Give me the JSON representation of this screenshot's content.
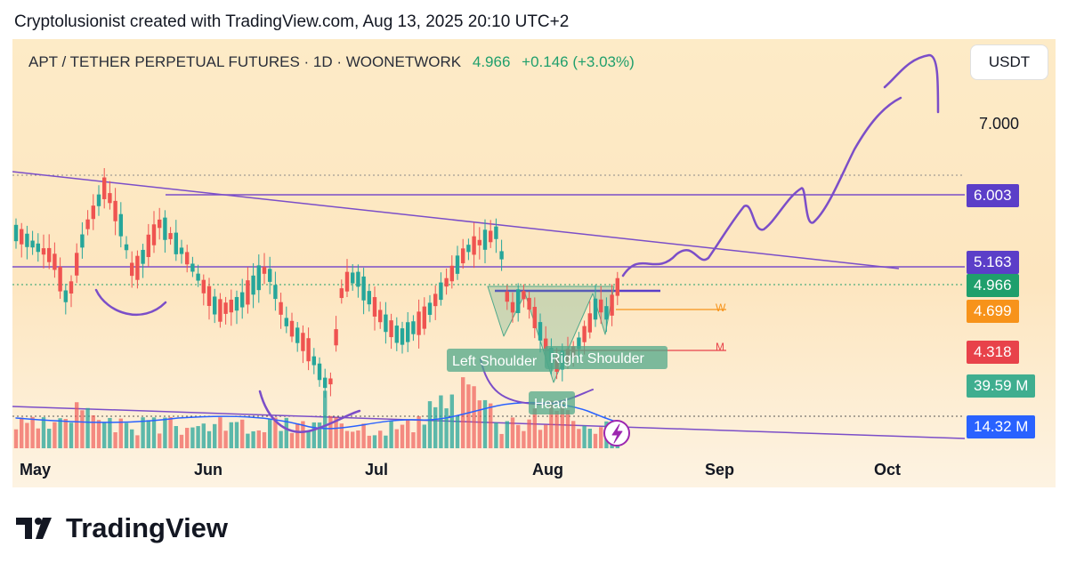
{
  "header": {
    "credit": "Cryptolusionist created with TradingView.com, Aug 13, 2025 20:10 UTC+2",
    "symbol": "APT / TETHER PERPETUAL FUTURES · 1D · WOONETWORK",
    "price": "4.966",
    "change": "+0.146 (+3.03%)",
    "currency": "USDT"
  },
  "chart_data": {
    "type": "candlestick",
    "timeframe": "1D",
    "x_labels": [
      "May",
      "Jun",
      "Jul",
      "Aug",
      "Sep",
      "Oct"
    ],
    "y_ticks": [
      "7.000"
    ],
    "price_labels": [
      {
        "value": "6.003",
        "color": "#5b3ec8"
      },
      {
        "value": "5.163",
        "color": "#5b3ec8"
      },
      {
        "value": "4.966",
        "color": "#1f9f6c"
      },
      {
        "value": "4.699",
        "color": "#f7931a"
      },
      {
        "value": "4.318",
        "color": "#e8424a"
      },
      {
        "value": "39.59 M",
        "color": "#3fae8f"
      },
      {
        "value": "14.32 M",
        "color": "#2962ff"
      }
    ],
    "annotations": [
      "Left Shoulder",
      "Head",
      "Right Shoulder",
      "W",
      "M"
    ],
    "colors": {
      "up": "#26a69a",
      "down": "#ef5350",
      "drawing": "#7b4ec8",
      "background": "#fde9c4"
    }
  },
  "brand": {
    "name": "TradingView"
  }
}
